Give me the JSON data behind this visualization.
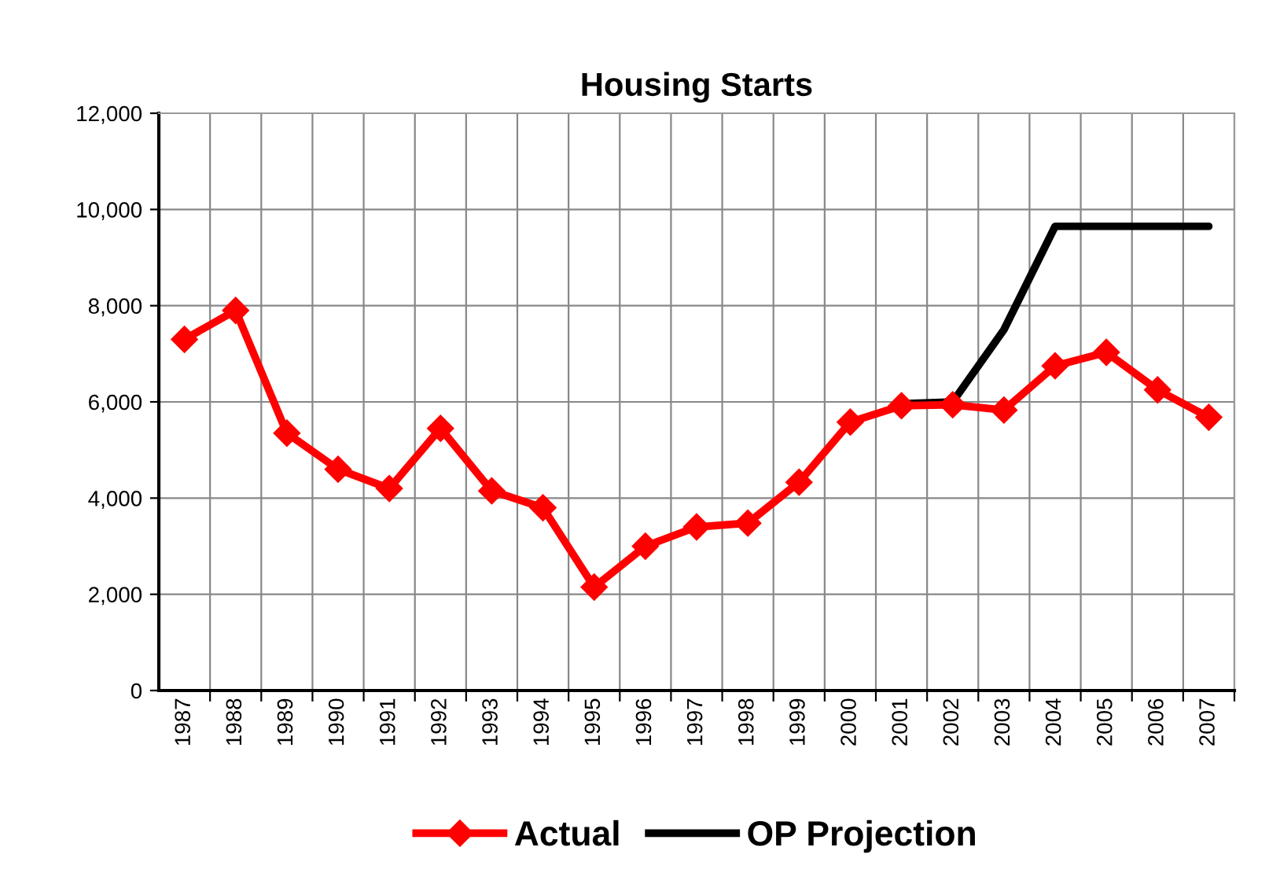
{
  "chart_data": {
    "type": "line",
    "title": "Housing Starts",
    "categories": [
      "1987",
      "1988",
      "1989",
      "1990",
      "1991",
      "1992",
      "1993",
      "1994",
      "1995",
      "1996",
      "1997",
      "1998",
      "1999",
      "2000",
      "2001",
      "2002",
      "2003",
      "2004",
      "2005",
      "2006",
      "2007"
    ],
    "series": [
      {
        "name": "Actual",
        "color": "#ff0000",
        "marker": "diamond",
        "values": [
          7300,
          7900,
          5350,
          4600,
          4200,
          5450,
          4150,
          3800,
          2150,
          3000,
          3400,
          3480,
          4330,
          5580,
          5920,
          5940,
          5830,
          6750,
          7030,
          6250,
          5680
        ]
      },
      {
        "name": "OP Projection",
        "color": "#000000",
        "marker": "none",
        "values": [
          null,
          null,
          null,
          null,
          null,
          null,
          null,
          null,
          null,
          null,
          null,
          null,
          null,
          null,
          5960,
          6000,
          7500,
          9650,
          9650,
          9650,
          9650
        ]
      }
    ],
    "ylim": [
      0,
      12000
    ],
    "yticks": [
      {
        "value": 0,
        "label": "0"
      },
      {
        "value": 2000,
        "label": "2,000"
      },
      {
        "value": 4000,
        "label": "4,000"
      },
      {
        "value": 6000,
        "label": "6,000"
      },
      {
        "value": 8000,
        "label": "8,000"
      },
      {
        "value": 10000,
        "label": "10,000"
      },
      {
        "value": 12000,
        "label": "12,000"
      }
    ],
    "grid": true,
    "legend": "bottom",
    "line_style": "solid"
  }
}
